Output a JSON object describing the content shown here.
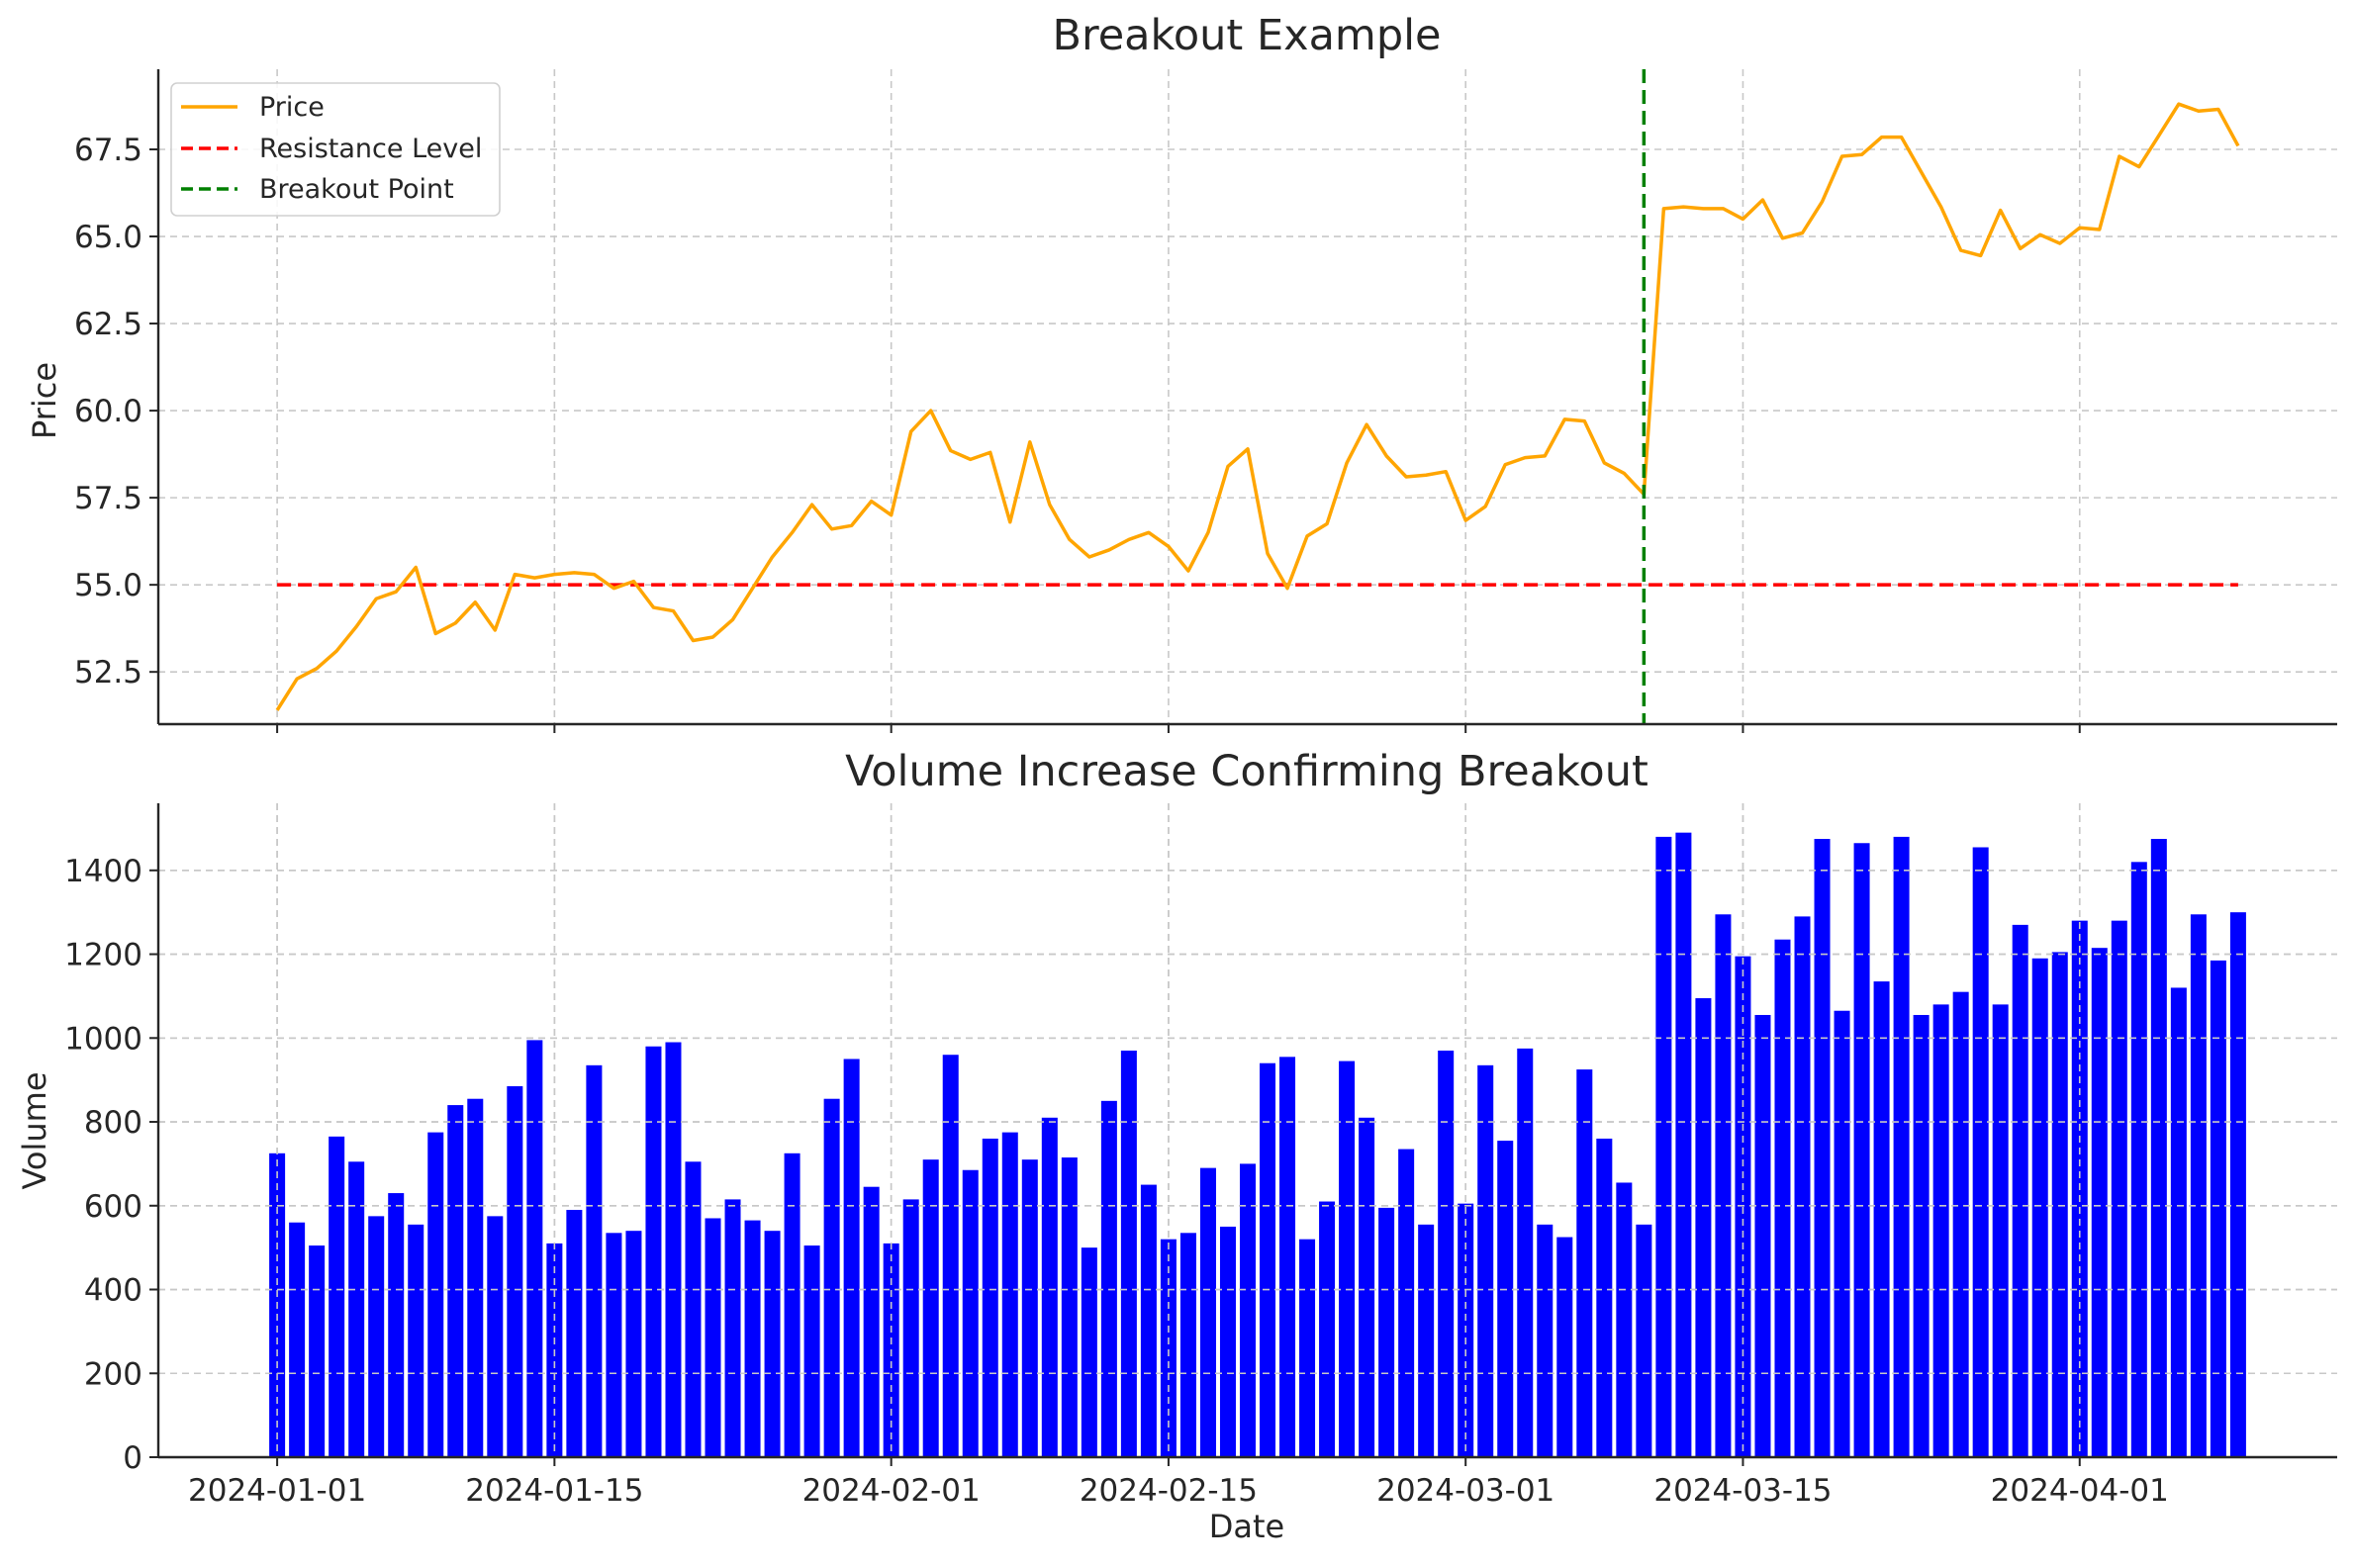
{
  "chart_data": [
    {
      "type": "line",
      "title": "Breakout Example",
      "xlabel": "",
      "ylabel": "Price",
      "x_start": "2024-01-01",
      "x_end": "2024-04-09",
      "xlim": [
        "2023-12-26",
        "2024-04-14"
      ],
      "ylim": [
        51.0,
        69.8
      ],
      "yticks": [
        "52.5",
        "55.0",
        "57.5",
        "60.0",
        "62.5",
        "65.0",
        "67.5"
      ],
      "grid": true,
      "legend": {
        "placement": "top-left",
        "entries": [
          {
            "name": "Price",
            "color": "#FFA500",
            "style": "solid"
          },
          {
            "name": "Resistance Level",
            "color": "#FF0000",
            "style": "dashed"
          },
          {
            "name": "Breakout Point",
            "color": "#008000",
            "style": "dashed"
          }
        ]
      },
      "series": [
        {
          "name": "Price",
          "color": "#FFA500",
          "values": [
            51.4,
            52.3,
            52.6,
            53.1,
            53.8,
            54.6,
            54.8,
            55.5,
            53.6,
            53.9,
            54.5,
            53.7,
            55.3,
            55.2,
            55.3,
            55.35,
            55.3,
            54.9,
            55.1,
            54.35,
            54.25,
            53.4,
            53.5,
            54.0,
            54.9,
            55.8,
            56.5,
            57.3,
            56.6,
            56.7,
            57.4,
            57.0,
            59.4,
            60.0,
            58.85,
            58.6,
            58.8,
            56.8,
            59.1,
            57.3,
            56.3,
            55.8,
            56.0,
            56.3,
            56.5,
            56.1,
            55.4,
            56.5,
            58.4,
            58.9,
            55.9,
            54.9,
            56.4,
            56.75,
            58.5,
            59.6,
            58.7,
            58.1,
            58.15,
            58.25,
            56.85,
            57.25,
            58.45,
            58.65,
            58.7,
            59.75,
            59.7,
            58.5,
            58.2,
            57.6,
            65.8,
            65.85,
            65.8,
            65.8,
            65.5,
            66.05,
            64.95,
            65.1,
            66.0,
            67.3,
            67.35,
            67.85,
            67.85,
            66.85,
            65.85,
            64.6,
            64.45,
            65.75,
            64.65,
            65.05,
            64.8,
            65.25,
            65.2,
            67.3,
            67.0,
            67.9,
            68.8,
            68.6,
            68.65,
            67.6
          ]
        },
        {
          "name": "Resistance Level",
          "color": "#FF0000",
          "style": "dashed",
          "value": 55.0
        },
        {
          "name": "Breakout Point",
          "color": "#008000",
          "style": "dashed",
          "x": "2024-03-10"
        }
      ]
    },
    {
      "type": "bar",
      "title": "Volume Increase Confirming Breakout",
      "xlabel": "Date",
      "ylabel": "Volume",
      "x_start": "2024-01-01",
      "x_end": "2024-04-09",
      "xlim": [
        "2023-12-26",
        "2024-04-14"
      ],
      "ylim": [
        0,
        1560
      ],
      "yticks": [
        "0",
        "200",
        "400",
        "600",
        "800",
        "1000",
        "1200",
        "1400"
      ],
      "xticks": [
        {
          "date": "2024-01-01",
          "label": "2024-01-01"
        },
        {
          "date": "2024-01-15",
          "label": "2024-01-15"
        },
        {
          "date": "2024-02-01",
          "label": "2024-02-01"
        },
        {
          "date": "2024-02-15",
          "label": "2024-02-15"
        },
        {
          "date": "2024-03-01",
          "label": "2024-03-01"
        },
        {
          "date": "2024-03-15",
          "label": "2024-03-15"
        },
        {
          "date": "2024-04-01",
          "label": "2024-04-01"
        }
      ],
      "grid": true,
      "series": [
        {
          "name": "Volume",
          "color": "#0000FF",
          "values": [
            725,
            560,
            505,
            765,
            705,
            575,
            630,
            555,
            775,
            840,
            855,
            575,
            885,
            995,
            510,
            590,
            935,
            535,
            540,
            980,
            990,
            705,
            570,
            615,
            565,
            540,
            725,
            505,
            855,
            950,
            645,
            510,
            615,
            710,
            960,
            685,
            760,
            775,
            710,
            810,
            715,
            500,
            850,
            970,
            650,
            520,
            535,
            690,
            550,
            700,
            940,
            955,
            520,
            610,
            945,
            810,
            595,
            735,
            555,
            970,
            605,
            935,
            755,
            975,
            555,
            525,
            925,
            760,
            655,
            555,
            1480,
            1490,
            1095,
            1295,
            1195,
            1055,
            1235,
            1290,
            1475,
            1065,
            1465,
            1135,
            1480,
            1055,
            1080,
            1110,
            1455,
            1080,
            1270,
            1190,
            1205,
            1280,
            1215,
            1280,
            1420,
            1475,
            1120,
            1295,
            1185,
            1300
          ]
        }
      ]
    }
  ]
}
